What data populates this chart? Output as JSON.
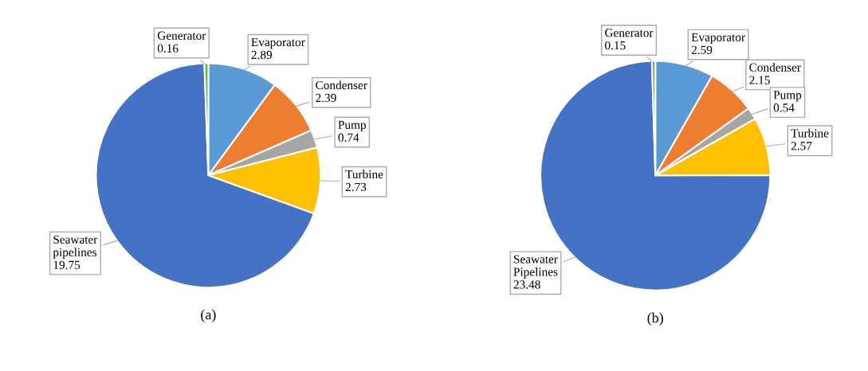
{
  "chart_data": [
    {
      "type": "pie",
      "title": "(a)",
      "categories": [
        "Evaporator",
        "Condenser",
        "Pump",
        "Turbine",
        "Seawater\npipelines",
        "Generator"
      ],
      "values": [
        2.89,
        2.39,
        0.74,
        2.73,
        19.75,
        0.16
      ],
      "colors": [
        "#5b9bd5",
        "#ed7d31",
        "#a5a5a5",
        "#ffc000",
        "#4472c4",
        "#70ad47"
      ],
      "data_labels": true
    },
    {
      "type": "pie",
      "title": "(b)",
      "categories": [
        "Evaporator",
        "Condenser",
        "Pump",
        "Turbine",
        "Seawater\nPipelines",
        "Generator"
      ],
      "values": [
        2.59,
        2.15,
        0.54,
        2.57,
        23.48,
        0.15
      ],
      "colors": [
        "#5b9bd5",
        "#ed7d31",
        "#a5a5a5",
        "#ffc000",
        "#4472c4",
        "#70ad47"
      ],
      "data_labels": true
    }
  ]
}
